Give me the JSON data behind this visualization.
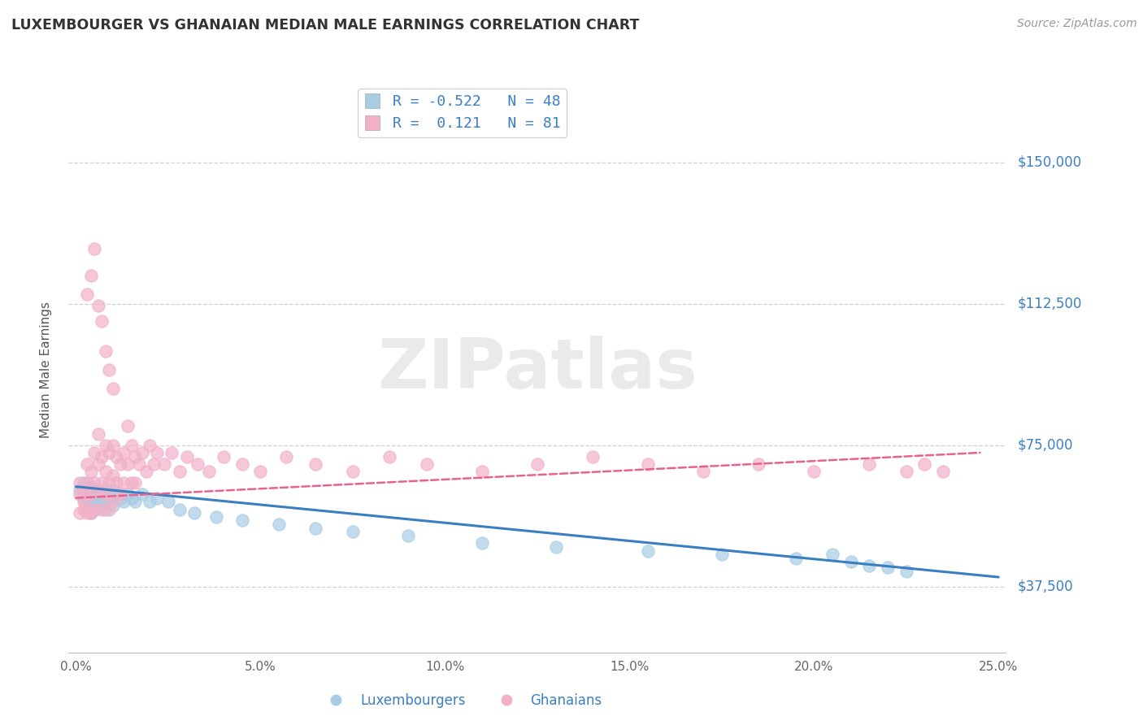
{
  "title": "LUXEMBOURGER VS GHANAIAN MEDIAN MALE EARNINGS CORRELATION CHART",
  "source_text": "Source: ZipAtlas.com",
  "ylabel": "Median Male Earnings",
  "watermark": "ZIPatlas",
  "legend_r1": "R = -0.522   N = 48",
  "legend_r2": "R =  0.121   N = 81",
  "bottom_legend": [
    "Luxembourgers",
    "Ghanaians"
  ],
  "xlim": [
    -0.002,
    0.252
  ],
  "xticks": [
    0.0,
    0.05,
    0.1,
    0.15,
    0.2,
    0.25
  ],
  "xticklabels": [
    "0.0%",
    "5.0%",
    "10.0%",
    "15.0%",
    "20.0%",
    "25.0%"
  ],
  "yticks": [
    37500,
    75000,
    112500,
    150000
  ],
  "yticklabels": [
    "$37,500",
    "$75,000",
    "$112,500",
    "$150,000"
  ],
  "ylim": [
    20000,
    170000
  ],
  "blue_line_color": "#3a7fc1",
  "pink_line_color": "#e8638c",
  "blue_scatter_color": "#a8cce4",
  "pink_scatter_color": "#f2b0c8",
  "grid_color": "#d0d0d0",
  "background_color": "#ffffff",
  "lux_x": [
    0.001,
    0.002,
    0.002,
    0.003,
    0.003,
    0.004,
    0.004,
    0.005,
    0.005,
    0.005,
    0.006,
    0.006,
    0.007,
    0.007,
    0.008,
    0.008,
    0.009,
    0.009,
    0.01,
    0.01,
    0.011,
    0.012,
    0.013,
    0.014,
    0.015,
    0.016,
    0.018,
    0.02,
    0.022,
    0.025,
    0.028,
    0.032,
    0.038,
    0.045,
    0.055,
    0.065,
    0.075,
    0.09,
    0.11,
    0.13,
    0.155,
    0.175,
    0.195,
    0.205,
    0.21,
    0.215,
    0.22,
    0.225
  ],
  "lux_y": [
    63000,
    61000,
    65000,
    60000,
    58000,
    64000,
    57000,
    62000,
    60000,
    58000,
    63000,
    59000,
    62000,
    60000,
    63000,
    58000,
    61000,
    60000,
    63000,
    59000,
    62000,
    61000,
    60000,
    62000,
    61000,
    60000,
    62000,
    60000,
    61000,
    60000,
    58000,
    57000,
    56000,
    55000,
    54000,
    53000,
    52000,
    51000,
    49000,
    48000,
    47000,
    46000,
    45000,
    46000,
    44000,
    43000,
    42500,
    41500
  ],
  "gha_x": [
    0.001,
    0.001,
    0.001,
    0.002,
    0.002,
    0.002,
    0.003,
    0.003,
    0.003,
    0.004,
    0.004,
    0.004,
    0.005,
    0.005,
    0.005,
    0.006,
    0.006,
    0.006,
    0.007,
    0.007,
    0.007,
    0.008,
    0.008,
    0.008,
    0.009,
    0.009,
    0.009,
    0.01,
    0.01,
    0.01,
    0.011,
    0.011,
    0.012,
    0.012,
    0.013,
    0.013,
    0.014,
    0.014,
    0.015,
    0.015,
    0.016,
    0.016,
    0.017,
    0.018,
    0.019,
    0.02,
    0.021,
    0.022,
    0.024,
    0.026,
    0.028,
    0.03,
    0.033,
    0.036,
    0.04,
    0.045,
    0.05,
    0.057,
    0.065,
    0.075,
    0.085,
    0.095,
    0.11,
    0.125,
    0.14,
    0.155,
    0.17,
    0.185,
    0.2,
    0.215,
    0.225,
    0.23,
    0.235,
    0.003,
    0.004,
    0.005,
    0.006,
    0.007,
    0.008,
    0.009,
    0.01
  ],
  "gha_y": [
    62000,
    57000,
    65000,
    58000,
    63000,
    60000,
    65000,
    57000,
    70000,
    62000,
    68000,
    57000,
    73000,
    65000,
    58000,
    70000,
    63000,
    78000,
    72000,
    65000,
    58000,
    68000,
    62000,
    75000,
    73000,
    65000,
    58000,
    75000,
    67000,
    60000,
    72000,
    65000,
    70000,
    62000,
    73000,
    65000,
    80000,
    70000,
    75000,
    65000,
    72000,
    65000,
    70000,
    73000,
    68000,
    75000,
    70000,
    73000,
    70000,
    73000,
    68000,
    72000,
    70000,
    68000,
    72000,
    70000,
    68000,
    72000,
    70000,
    68000,
    72000,
    70000,
    68000,
    70000,
    72000,
    70000,
    68000,
    70000,
    68000,
    70000,
    68000,
    70000,
    68000,
    115000,
    120000,
    127000,
    112000,
    108000,
    100000,
    95000,
    90000
  ],
  "blue_trend_x": [
    0.0,
    0.25
  ],
  "blue_trend_y": [
    64000,
    40000
  ],
  "pink_trend_x": [
    0.0,
    0.245
  ],
  "pink_trend_y": [
    61000,
    73000
  ]
}
